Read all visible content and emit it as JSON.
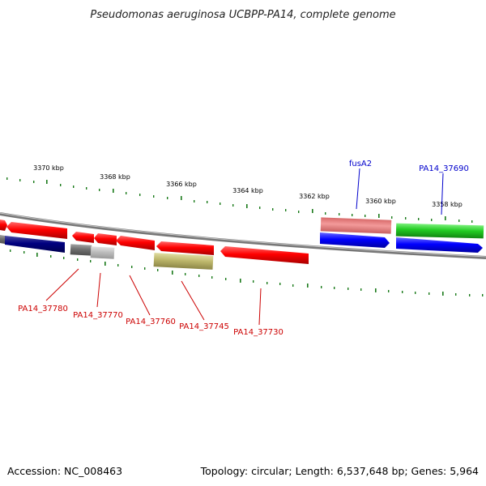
{
  "title": "Pseudomonas aeruginosa UCBPP-PA14, complete genome",
  "footer": {
    "accession": "Accession: NC_008463",
    "summary": "Topology: circular; Length: 6,537,648 bp; Genes: 5,964"
  },
  "colors": {
    "backbone": "#8c8c8c",
    "tick": "#1a7a1a",
    "label_red": "#cc0000",
    "label_blue": "#0000cc"
  },
  "kbp_labels": [
    "3370 kbp",
    "3368 kbp",
    "3366 kbp",
    "3364 kbp",
    "3362 kbp",
    "3360 kbp",
    "3358 kbp"
  ],
  "genes": [
    {
      "id": "PA14_37780",
      "label": "PA14_37780",
      "color": "#cc0000"
    },
    {
      "id": "PA14_37770",
      "label": "PA14_37770",
      "color": "#cc0000"
    },
    {
      "id": "PA14_37760",
      "label": "PA14_37760",
      "color": "#cc0000"
    },
    {
      "id": "PA14_37745",
      "label": "PA14_37745",
      "color": "#cc0000"
    },
    {
      "id": "PA14_37730",
      "label": "PA14_37730",
      "color": "#cc0000"
    },
    {
      "id": "fusA2",
      "label": "fusA2",
      "color": "#0000cc"
    },
    {
      "id": "PA14_37690",
      "label": "PA14_37690",
      "color": "#0000cc"
    }
  ]
}
